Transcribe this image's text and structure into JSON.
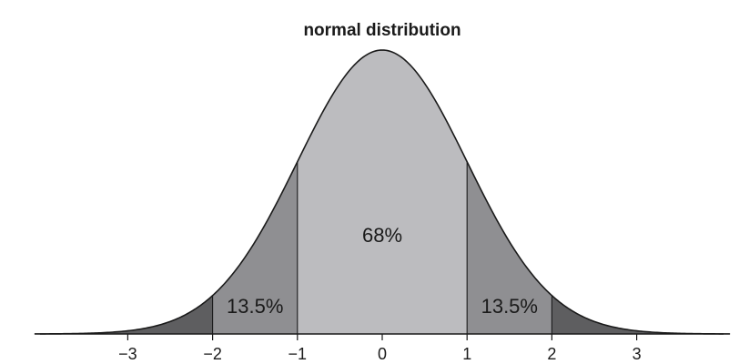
{
  "chart_data": {
    "type": "area",
    "title": "normal distribution",
    "xlabel": "",
    "ylabel": "",
    "xlim": [
      -4.1,
      4.1
    ],
    "x_ticks": [
      -3,
      -2,
      -1,
      0,
      1,
      2,
      3
    ],
    "x_tick_labels": [
      "−3",
      "−2",
      "−1",
      "0",
      "1",
      "2",
      "3"
    ],
    "mean": 0,
    "sd": 1,
    "regions": [
      {
        "from": -4.1,
        "to": -2,
        "color": "#5e5e60"
      },
      {
        "from": -2,
        "to": -1,
        "color": "#8f8f92"
      },
      {
        "from": -1,
        "to": 1,
        "color": "#bcbcbf"
      },
      {
        "from": 1,
        "to": 2,
        "color": "#8f8f92"
      },
      {
        "from": 2,
        "to": 4.1,
        "color": "#5e5e60"
      }
    ],
    "region_labels": [
      {
        "text": "13.5%",
        "x": -1.5
      },
      {
        "text": "68%",
        "x": 0
      },
      {
        "text": "13.5%",
        "x": 1.5
      }
    ],
    "grid": false,
    "legend": false
  }
}
